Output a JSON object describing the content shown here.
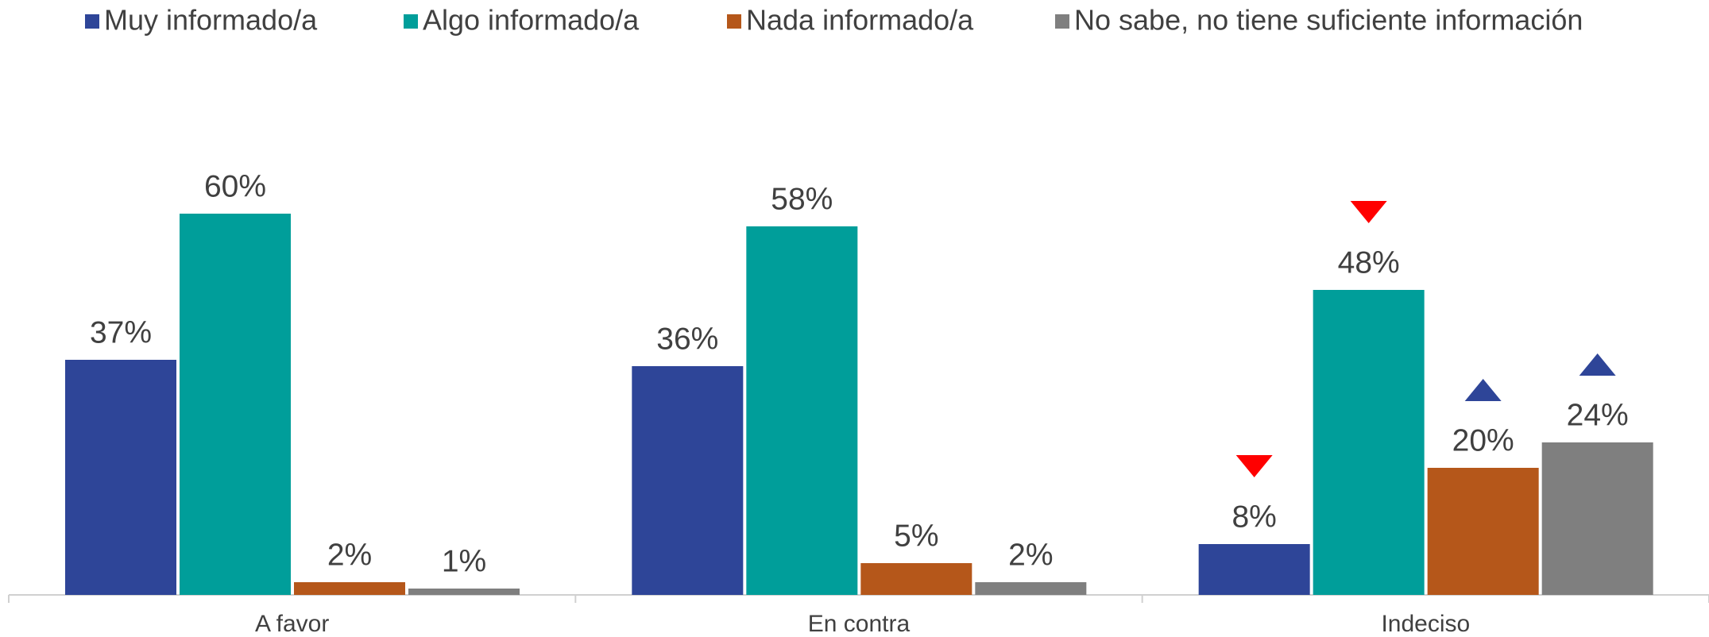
{
  "chart_data": {
    "type": "bar",
    "categories": [
      "A favor",
      "En contra",
      "Indeciso"
    ],
    "series": [
      {
        "name": "Muy informado/a",
        "color": "#2e4598",
        "values": [
          37,
          36,
          8
        ],
        "value_labels": [
          "37%",
          "36%",
          "8%"
        ],
        "arrows": [
          null,
          null,
          "down"
        ]
      },
      {
        "name": "Algo informado/a",
        "color": "#009e9a",
        "values": [
          60,
          58,
          48
        ],
        "value_labels": [
          "60%",
          "58%",
          "48%"
        ],
        "arrows": [
          null,
          null,
          "down"
        ]
      },
      {
        "name": "Nada informado/a",
        "color": "#b5571a",
        "values": [
          2,
          5,
          20
        ],
        "value_labels": [
          "2%",
          "5%",
          "20%"
        ],
        "arrows": [
          null,
          null,
          "up"
        ]
      },
      {
        "name": "No sabe, no tiene suficiente información",
        "color": "#7f7f7f",
        "values": [
          1,
          2,
          24
        ],
        "value_labels": [
          "1%",
          "2%",
          "24%"
        ],
        "arrows": [
          null,
          null,
          "up"
        ]
      }
    ],
    "arrow_colors": {
      "up": "#2e4598",
      "down": "#ff0000"
    },
    "ylim": [
      0,
      90
    ]
  }
}
